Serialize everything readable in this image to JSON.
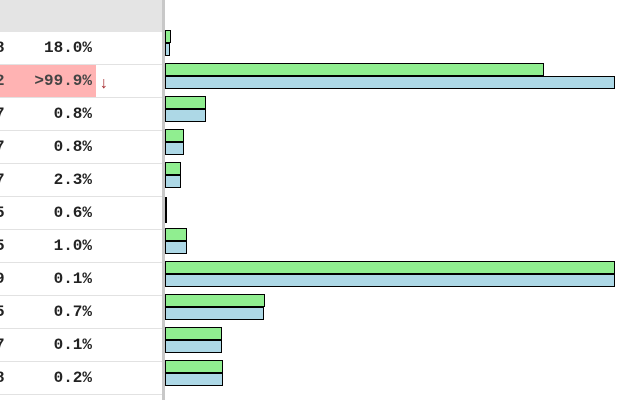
{
  "rows": [
    {
      "id": "8",
      "pct": "18.0%",
      "green": 0.013,
      "blue": 0.011
    },
    {
      "id": "2",
      "pct": ">99.9%",
      "green": 0.842,
      "blue": 1.0,
      "highlight": true,
      "arrow": "↓"
    },
    {
      "id": "7",
      "pct": "0.8%",
      "green": 0.091,
      "blue": 0.091
    },
    {
      "id": "7",
      "pct": "0.8%",
      "green": 0.042,
      "blue": 0.042
    },
    {
      "id": "7",
      "pct": "2.3%",
      "green": 0.036,
      "blue": 0.036
    },
    {
      "id": "5",
      "pct": "0.6%",
      "green": 0,
      "blue": 0
    },
    {
      "id": "5",
      "pct": "1.0%",
      "green": 0.049,
      "blue": 0.049
    },
    {
      "id": "9",
      "pct": "0.1%",
      "green": 1.0,
      "blue": 1.0
    },
    {
      "id": "5",
      "pct": "0.7%",
      "green": 0.223,
      "blue": 0.22
    },
    {
      "id": "7",
      "pct": "0.1%",
      "green": 0.127,
      "blue": 0.127
    },
    {
      "id": "8",
      "pct": "0.2%",
      "green": 0.129,
      "blue": 0.129
    }
  ],
  "colors": {
    "green": "#90ee90",
    "blue": "#add8e6",
    "highlight": "#ffb3b3",
    "arrow": "#a3262a"
  }
}
